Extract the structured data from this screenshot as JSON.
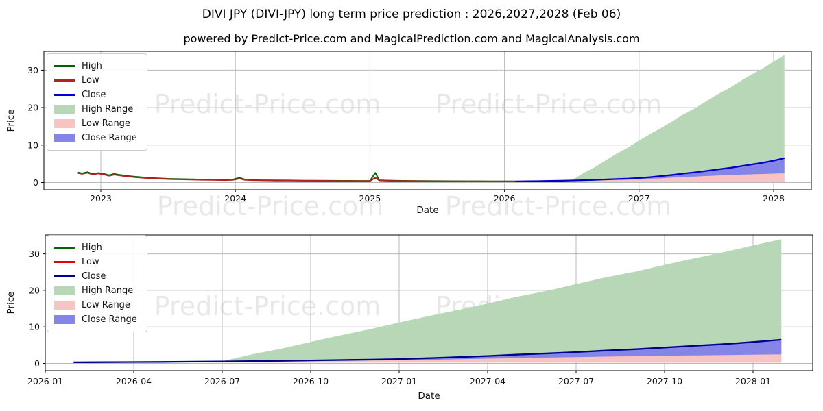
{
  "header": {
    "title": "DIVI JPY (DIVI-JPY) long term price prediction : 2026,2027,2028 (Feb 06)",
    "subtitle": "powered by Predict-Price.com and MagicalPrediction.com and MagicalAnalysis.com"
  },
  "watermark": {
    "text": "Predict-Price.com"
  },
  "chart_data": [
    {
      "id": "top",
      "type": "line",
      "title": "",
      "xlabel": "Date",
      "ylabel": "Price",
      "x_unit": "decimal_year",
      "xlim": [
        2022.58,
        2028.28
      ],
      "ylim": [
        -2,
        35
      ],
      "grid": true,
      "legend_position": "upper left",
      "legend": [
        {
          "label": "High",
          "swatch": "line",
          "color": "#006400"
        },
        {
          "label": "Low",
          "swatch": "line",
          "color": "#b22222"
        },
        {
          "label": "Close",
          "swatch": "line",
          "color": "#0000cd"
        },
        {
          "label": "High Range",
          "swatch": "patch",
          "color": "#b7d7b7"
        },
        {
          "label": "Low Range",
          "swatch": "patch",
          "color": "#f8c3c3"
        },
        {
          "label": "Close Range",
          "swatch": "patch",
          "color": "#8585e8"
        }
      ],
      "x_ticks": [
        {
          "v": 2023,
          "label": "2023"
        },
        {
          "v": 2024,
          "label": "2024"
        },
        {
          "v": 2025,
          "label": "2025"
        },
        {
          "v": 2026,
          "label": "2026"
        },
        {
          "v": 2027,
          "label": "2027"
        },
        {
          "v": 2028,
          "label": "2028"
        }
      ],
      "y_ticks": [
        {
          "v": 0,
          "label": "0"
        },
        {
          "v": 10,
          "label": "10"
        },
        {
          "v": 20,
          "label": "20"
        },
        {
          "v": 30,
          "label": "30"
        }
      ],
      "series": [
        {
          "name": "High Range",
          "type": "area",
          "color": "#b7d7b7",
          "x": [
            2026.08,
            2026.17,
            2026.25,
            2026.33,
            2026.42,
            2026.5,
            2026.58,
            2026.67,
            2026.75,
            2026.83,
            2026.92,
            2027.0,
            2027.08,
            2027.17,
            2027.25,
            2027.33,
            2027.42,
            2027.5,
            2027.58,
            2027.67,
            2027.75,
            2027.83,
            2027.92,
            2028.0,
            2028.08
          ],
          "upper": [
            0.32,
            0.36,
            0.41,
            0.46,
            0.52,
            0.6,
            2.4,
            4.1,
            5.9,
            7.6,
            9.4,
            11.2,
            12.9,
            14.7,
            16.4,
            18.2,
            19.9,
            21.7,
            23.5,
            25.2,
            27.0,
            28.7,
            30.5,
            32.3,
            34.0
          ],
          "lower": [
            0.3,
            0.3,
            0.29,
            0.28,
            0.27,
            0.27,
            0.26,
            0.26,
            0.25,
            0.25,
            0.24,
            0.24,
            0.23,
            0.23,
            0.22,
            0.22,
            0.21,
            0.21,
            0.21,
            0.2,
            0.2,
            0.2,
            0.2,
            0.2,
            0.2
          ]
        },
        {
          "name": "Low Range",
          "type": "area",
          "color": "#f8c3c3",
          "x": [
            2026.08,
            2026.17,
            2026.25,
            2026.33,
            2026.42,
            2026.5,
            2026.58,
            2026.67,
            2026.75,
            2026.83,
            2026.92,
            2027.0,
            2027.08,
            2027.17,
            2027.25,
            2027.33,
            2027.42,
            2027.5,
            2027.58,
            2027.67,
            2027.75,
            2027.83,
            2027.92,
            2028.0,
            2028.08
          ],
          "upper": [
            0.3,
            0.32,
            0.35,
            0.39,
            0.44,
            0.49,
            0.54,
            0.6,
            0.67,
            0.74,
            0.81,
            0.9,
            1.06,
            1.23,
            1.39,
            1.57,
            1.74,
            1.89,
            2.06,
            2.2,
            2.36,
            2.49,
            2.63,
            2.77,
            2.93
          ],
          "lower": [
            0.3,
            0.3,
            0.29,
            0.28,
            0.27,
            0.27,
            0.26,
            0.26,
            0.25,
            0.25,
            0.24,
            0.24,
            0.23,
            0.23,
            0.22,
            0.22,
            0.21,
            0.21,
            0.21,
            0.2,
            0.2,
            0.2,
            0.2,
            0.2,
            0.2
          ]
        },
        {
          "name": "Close Range",
          "type": "area",
          "color": "#8585e8",
          "x": [
            2026.08,
            2026.17,
            2026.25,
            2026.33,
            2026.42,
            2026.5,
            2026.58,
            2026.67,
            2026.75,
            2026.83,
            2026.92,
            2027.0,
            2027.08,
            2027.17,
            2027.25,
            2027.33,
            2027.42,
            2027.5,
            2027.58,
            2027.67,
            2027.75,
            2027.83,
            2027.92,
            2028.0,
            2028.08
          ],
          "upper": [
            0.3,
            0.33,
            0.37,
            0.42,
            0.48,
            0.55,
            0.63,
            0.72,
            0.82,
            0.93,
            1.05,
            1.2,
            1.45,
            1.75,
            2.05,
            2.4,
            2.75,
            3.1,
            3.5,
            3.9,
            4.35,
            4.8,
            5.3,
            5.85,
            6.5
          ],
          "lower": [
            0.3,
            0.32,
            0.35,
            0.39,
            0.43,
            0.48,
            0.53,
            0.59,
            0.65,
            0.71,
            0.78,
            0.86,
            1.0,
            1.16,
            1.31,
            1.47,
            1.61,
            1.74,
            1.87,
            1.99,
            2.1,
            2.2,
            2.29,
            2.38,
            2.47
          ]
        },
        {
          "name": "High",
          "type": "line",
          "color": "#006400",
          "width": 2,
          "x": [
            2022.83,
            2022.86,
            2022.9,
            2022.94,
            2022.98,
            2023.02,
            2023.06,
            2023.1,
            2023.14,
            2023.19,
            2023.25,
            2023.33,
            2023.42,
            2023.5,
            2023.58,
            2023.67,
            2023.75,
            2023.83,
            2023.92,
            2023.98,
            2024.03,
            2024.07,
            2024.12,
            2024.2,
            2024.3,
            2024.4,
            2024.5,
            2024.6,
            2024.7,
            2024.8,
            2024.9,
            2025.0,
            2025.04,
            2025.07,
            2025.12,
            2025.2,
            2025.3,
            2025.4,
            2025.5,
            2025.6,
            2025.7,
            2025.8,
            2025.9,
            2026.0,
            2026.08
          ],
          "y": [
            2.7,
            2.45,
            2.78,
            2.3,
            2.55,
            2.35,
            1.95,
            2.32,
            2.05,
            1.78,
            1.57,
            1.31,
            1.15,
            1.01,
            0.93,
            0.86,
            0.8,
            0.75,
            0.7,
            0.78,
            1.28,
            0.82,
            0.7,
            0.63,
            0.58,
            0.56,
            0.52,
            0.5,
            0.48,
            0.46,
            0.43,
            0.43,
            2.6,
            0.63,
            0.55,
            0.48,
            0.43,
            0.4,
            0.38,
            0.36,
            0.35,
            0.34,
            0.33,
            0.33,
            0.33
          ]
        },
        {
          "name": "Low",
          "type": "line",
          "color": "#b22222",
          "width": 2,
          "x": [
            2022.83,
            2022.86,
            2022.9,
            2022.94,
            2022.98,
            2023.02,
            2023.06,
            2023.1,
            2023.14,
            2023.19,
            2023.25,
            2023.33,
            2023.42,
            2023.5,
            2023.58,
            2023.67,
            2023.75,
            2023.83,
            2023.92,
            2023.98,
            2024.03,
            2024.07,
            2024.12,
            2024.2,
            2024.3,
            2024.4,
            2024.5,
            2024.6,
            2024.7,
            2024.8,
            2024.9,
            2025.0,
            2025.04,
            2025.07,
            2025.12,
            2025.2,
            2025.3,
            2025.4,
            2025.5,
            2025.6,
            2025.7,
            2025.8,
            2025.9,
            2026.0,
            2026.08
          ],
          "y": [
            2.55,
            2.3,
            2.6,
            2.15,
            2.4,
            2.2,
            1.8,
            2.1,
            1.9,
            1.65,
            1.45,
            1.2,
            1.05,
            0.92,
            0.85,
            0.78,
            0.72,
            0.68,
            0.63,
            0.68,
            1.05,
            0.72,
            0.62,
            0.56,
            0.52,
            0.5,
            0.47,
            0.45,
            0.43,
            0.41,
            0.39,
            0.38,
            1.3,
            0.55,
            0.48,
            0.42,
            0.38,
            0.35,
            0.33,
            0.32,
            0.31,
            0.3,
            0.3,
            0.3,
            0.3
          ]
        },
        {
          "name": "Close",
          "type": "line",
          "color": "#0000cd",
          "width": 2.3,
          "x": [
            2026.08,
            2026.17,
            2026.25,
            2026.33,
            2026.42,
            2026.5,
            2026.58,
            2026.67,
            2026.75,
            2026.83,
            2026.92,
            2027.0,
            2027.08,
            2027.17,
            2027.25,
            2027.33,
            2027.42,
            2027.5,
            2027.58,
            2027.67,
            2027.75,
            2027.83,
            2027.92,
            2028.0,
            2028.08
          ],
          "y": [
            0.3,
            0.33,
            0.37,
            0.42,
            0.48,
            0.55,
            0.63,
            0.72,
            0.82,
            0.93,
            1.05,
            1.2,
            1.45,
            1.75,
            2.05,
            2.4,
            2.75,
            3.1,
            3.5,
            3.9,
            4.35,
            4.8,
            5.3,
            5.85,
            6.5
          ]
        }
      ]
    },
    {
      "id": "bottom",
      "type": "line",
      "title": "",
      "xlabel": "Date",
      "ylabel": "Price",
      "x_unit": "decimal_year",
      "xlim": [
        2025.98,
        2028.22
      ],
      "ylim": [
        -2,
        35
      ],
      "grid": true,
      "legend_position": "upper left",
      "legend": [
        {
          "label": "High",
          "swatch": "line",
          "color": "#006400"
        },
        {
          "label": "Low",
          "swatch": "line",
          "color": "#e60000"
        },
        {
          "label": "Close",
          "swatch": "line",
          "color": "#00008b"
        },
        {
          "label": "High Range",
          "swatch": "patch",
          "color": "#b7d7b7"
        },
        {
          "label": "Low Range",
          "swatch": "patch",
          "color": "#f8c3c3"
        },
        {
          "label": "Close Range",
          "swatch": "patch",
          "color": "#8585e8"
        }
      ],
      "x_ticks": [
        {
          "v": 2026.0,
          "label": "2026-01"
        },
        {
          "v": 2026.25,
          "label": "2026-04"
        },
        {
          "v": 2026.5,
          "label": "2026-07"
        },
        {
          "v": 2026.75,
          "label": "2026-10"
        },
        {
          "v": 2027.0,
          "label": "2027-01"
        },
        {
          "v": 2027.25,
          "label": "2027-04"
        },
        {
          "v": 2027.5,
          "label": "2027-07"
        },
        {
          "v": 2027.75,
          "label": "2027-10"
        },
        {
          "v": 2028.0,
          "label": "2028-01"
        }
      ],
      "y_ticks": [
        {
          "v": 0,
          "label": "0"
        },
        {
          "v": 10,
          "label": "10"
        },
        {
          "v": 20,
          "label": "20"
        },
        {
          "v": 30,
          "label": "30"
        }
      ],
      "series": [
        {
          "name": "High Range",
          "type": "area",
          "color": "#b7d7b7",
          "x": [
            2026.08,
            2026.17,
            2026.25,
            2026.33,
            2026.42,
            2026.5,
            2026.58,
            2026.67,
            2026.75,
            2026.83,
            2026.92,
            2027.0,
            2027.08,
            2027.17,
            2027.25,
            2027.33,
            2027.42,
            2027.5,
            2027.58,
            2027.67,
            2027.75,
            2027.83,
            2027.92,
            2028.0,
            2028.08
          ],
          "upper": [
            0.32,
            0.36,
            0.41,
            0.46,
            0.52,
            0.6,
            2.4,
            4.1,
            5.9,
            7.6,
            9.4,
            11.2,
            12.9,
            14.7,
            16.4,
            18.2,
            19.9,
            21.7,
            23.5,
            25.2,
            27.0,
            28.7,
            30.5,
            32.3,
            34.0
          ],
          "lower": [
            0.3,
            0.3,
            0.29,
            0.28,
            0.27,
            0.27,
            0.26,
            0.26,
            0.25,
            0.25,
            0.24,
            0.24,
            0.23,
            0.23,
            0.22,
            0.22,
            0.21,
            0.21,
            0.21,
            0.2,
            0.2,
            0.2,
            0.2,
            0.2,
            0.2
          ]
        },
        {
          "name": "Low Range",
          "type": "area",
          "color": "#f8c3c3",
          "x": [
            2026.08,
            2026.17,
            2026.25,
            2026.33,
            2026.42,
            2026.5,
            2026.58,
            2026.67,
            2026.75,
            2026.83,
            2026.92,
            2027.0,
            2027.08,
            2027.17,
            2027.25,
            2027.33,
            2027.42,
            2027.5,
            2027.58,
            2027.67,
            2027.75,
            2027.83,
            2027.92,
            2028.0,
            2028.08
          ],
          "upper": [
            0.3,
            0.32,
            0.35,
            0.39,
            0.44,
            0.49,
            0.54,
            0.6,
            0.67,
            0.74,
            0.81,
            0.9,
            1.06,
            1.23,
            1.39,
            1.57,
            1.74,
            1.89,
            2.06,
            2.2,
            2.36,
            2.49,
            2.63,
            2.77,
            2.93
          ],
          "lower": [
            0.3,
            0.3,
            0.29,
            0.28,
            0.27,
            0.27,
            0.26,
            0.26,
            0.25,
            0.25,
            0.24,
            0.24,
            0.23,
            0.23,
            0.22,
            0.22,
            0.21,
            0.21,
            0.21,
            0.2,
            0.2,
            0.2,
            0.2,
            0.2,
            0.2
          ]
        },
        {
          "name": "Close Range",
          "type": "area",
          "color": "#8585e8",
          "x": [
            2026.08,
            2026.17,
            2026.25,
            2026.33,
            2026.42,
            2026.5,
            2026.58,
            2026.67,
            2026.75,
            2026.83,
            2026.92,
            2027.0,
            2027.08,
            2027.17,
            2027.25,
            2027.33,
            2027.42,
            2027.5,
            2027.58,
            2027.67,
            2027.75,
            2027.83,
            2027.92,
            2028.0,
            2028.08
          ],
          "upper": [
            0.3,
            0.33,
            0.37,
            0.42,
            0.48,
            0.55,
            0.63,
            0.72,
            0.82,
            0.93,
            1.05,
            1.2,
            1.45,
            1.75,
            2.05,
            2.4,
            2.75,
            3.1,
            3.5,
            3.9,
            4.35,
            4.8,
            5.3,
            5.85,
            6.5
          ],
          "lower": [
            0.3,
            0.32,
            0.35,
            0.39,
            0.43,
            0.48,
            0.53,
            0.59,
            0.65,
            0.71,
            0.78,
            0.86,
            1.0,
            1.16,
            1.31,
            1.47,
            1.61,
            1.74,
            1.87,
            1.99,
            2.1,
            2.2,
            2.29,
            2.38,
            2.47
          ]
        },
        {
          "name": "Close",
          "type": "line",
          "color": "#00008b",
          "width": 2.3,
          "x": [
            2026.08,
            2026.17,
            2026.25,
            2026.33,
            2026.42,
            2026.5,
            2026.58,
            2026.67,
            2026.75,
            2026.83,
            2026.92,
            2027.0,
            2027.08,
            2027.17,
            2027.25,
            2027.33,
            2027.42,
            2027.5,
            2027.58,
            2027.67,
            2027.75,
            2027.83,
            2027.92,
            2028.0,
            2028.08
          ],
          "y": [
            0.3,
            0.33,
            0.37,
            0.42,
            0.48,
            0.55,
            0.63,
            0.72,
            0.82,
            0.93,
            1.05,
            1.2,
            1.45,
            1.75,
            2.05,
            2.4,
            2.75,
            3.1,
            3.5,
            3.9,
            4.35,
            4.8,
            5.3,
            5.85,
            6.5
          ]
        }
      ]
    }
  ]
}
